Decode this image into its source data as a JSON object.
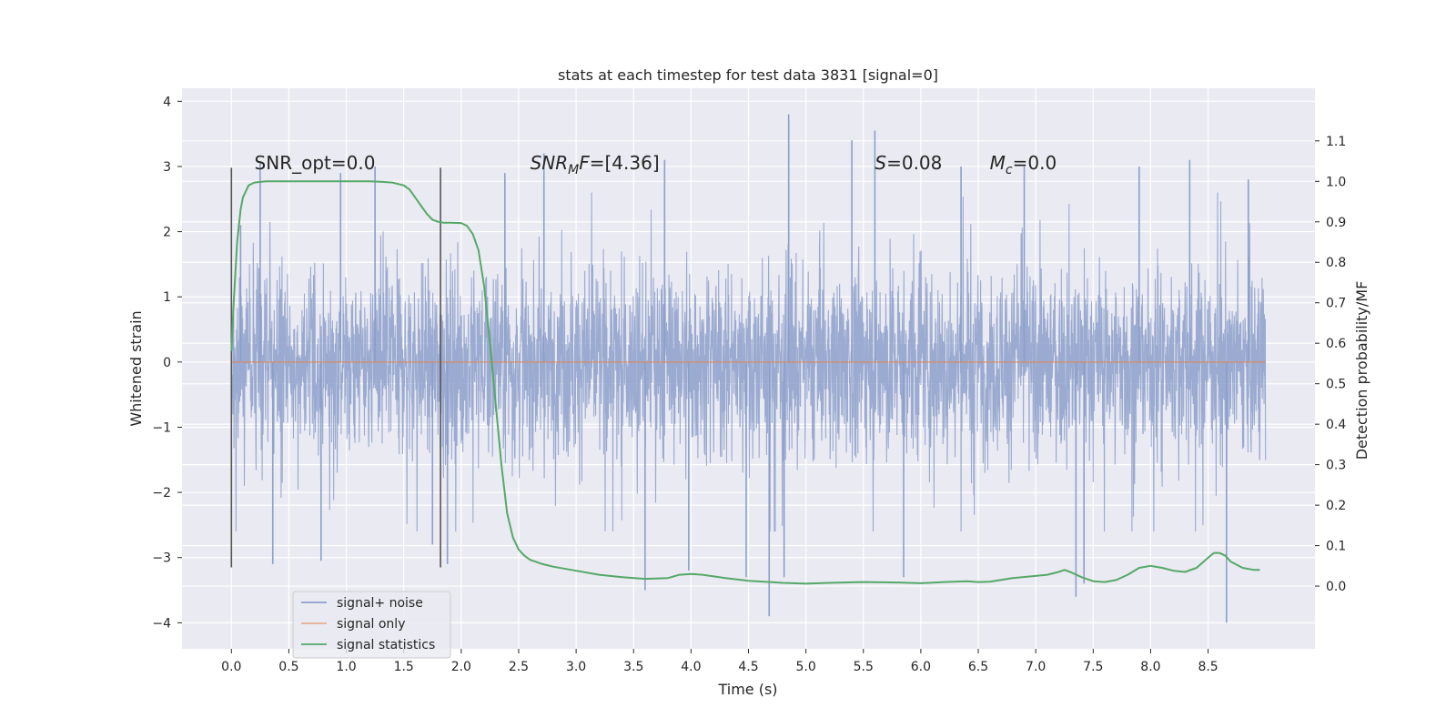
{
  "chart_data": {
    "type": "line",
    "title": "stats at each timestep for test data 3831 [signal=0]",
    "xlabel": "Time (s)",
    "ylabel": "Whitened strain",
    "y2label": "Detection probability/MF",
    "xlim": [
      -0.43,
      9.43
    ],
    "ylim": [
      -4.4,
      4.2
    ],
    "y2lim": [
      -0.155,
      1.23
    ],
    "xticks": [
      0.0,
      0.5,
      1.0,
      1.5,
      2.0,
      2.5,
      3.0,
      3.5,
      4.0,
      4.5,
      5.0,
      5.5,
      6.0,
      6.5,
      7.0,
      7.5,
      8.0,
      8.5
    ],
    "xtick_labels": [
      "0.0",
      "0.5",
      "1.0",
      "1.5",
      "2.0",
      "2.5",
      "3.0",
      "3.5",
      "4.0",
      "4.5",
      "5.0",
      "5.5",
      "6.0",
      "6.5",
      "7.0",
      "7.5",
      "8.0",
      "8.5"
    ],
    "yticks": [
      -4,
      -3,
      -2,
      -1,
      0,
      1,
      2,
      3,
      4
    ],
    "ytick_labels": [
      "−4",
      "−3",
      "−2",
      "−1",
      "0",
      "1",
      "2",
      "3",
      "4"
    ],
    "y2ticks": [
      0.0,
      0.1,
      0.2,
      0.3,
      0.4,
      0.5,
      0.6,
      0.7,
      0.8,
      0.9,
      1.0,
      1.1
    ],
    "y2tick_labels": [
      "0.0",
      "0.1",
      "0.2",
      "0.3",
      "0.4",
      "0.5",
      "0.6",
      "0.7",
      "0.8",
      "0.9",
      "1.0",
      "1.1"
    ],
    "grid": true,
    "legend_position": "lower-left",
    "annotations": [
      {
        "text": "SNR_opt=0.0",
        "x": 0.2,
        "y": 3.0
      },
      {
        "text": "SNR_MF=[4.36]",
        "x": 2.6,
        "y": 3.0,
        "main": "SNR",
        "sub": "M",
        "rest": "F=[4.36]"
      },
      {
        "text": "S=0.08",
        "x": 5.6,
        "y": 3.0,
        "main": "S",
        "rest": "=0.08"
      },
      {
        "text": "M_c=0.0",
        "x": 6.6,
        "y": 3.0,
        "main": "M",
        "sub": "c",
        "rest": "=0.0"
      }
    ],
    "vlines": [
      0.0,
      1.82
    ],
    "vline_range": [
      -3.15,
      2.98
    ],
    "series": [
      {
        "name": "signal+ noise",
        "color": "#8c9fca",
        "x_range": [
          0.0,
          9.0
        ],
        "core_amplitude": 1.15,
        "envelope": [
          -2.6,
          2.6
        ],
        "spikes": [
          {
            "x": 0.08,
            "y": 2.1
          },
          {
            "x": 0.25,
            "y": 3.05
          },
          {
            "x": 0.36,
            "y": -3.1
          },
          {
            "x": 0.78,
            "y": -3.05
          },
          {
            "x": 0.95,
            "y": 2.9
          },
          {
            "x": 1.25,
            "y": 3.0
          },
          {
            "x": 1.75,
            "y": -2.8
          },
          {
            "x": 1.88,
            "y": -3.1
          },
          {
            "x": 2.38,
            "y": 2.9
          },
          {
            "x": 2.72,
            "y": 3.2
          },
          {
            "x": 3.6,
            "y": -3.5
          },
          {
            "x": 3.77,
            "y": 3.1
          },
          {
            "x": 3.98,
            "y": -3.2
          },
          {
            "x": 4.48,
            "y": -3.3
          },
          {
            "x": 4.68,
            "y": -3.9
          },
          {
            "x": 4.85,
            "y": 3.8
          },
          {
            "x": 4.81,
            "y": -3.3
          },
          {
            "x": 5.4,
            "y": 3.4
          },
          {
            "x": 5.6,
            "y": 3.55
          },
          {
            "x": 5.85,
            "y": -3.3
          },
          {
            "x": 6.35,
            "y": 3.0
          },
          {
            "x": 6.9,
            "y": 3.0
          },
          {
            "x": 7.35,
            "y": -3.6
          },
          {
            "x": 7.42,
            "y": -3.4
          },
          {
            "x": 7.9,
            "y": 3.0
          },
          {
            "x": 8.34,
            "y": 3.1
          },
          {
            "x": 8.66,
            "y": -4.0
          },
          {
            "x": 8.85,
            "y": 2.8
          }
        ]
      },
      {
        "name": "signal only",
        "color": "#dd8452",
        "x": [
          0.0,
          9.0
        ],
        "y": [
          0.0,
          0.0
        ]
      },
      {
        "name": "signal statistics",
        "color": "#55a868",
        "axis": "right",
        "x": [
          0.0,
          0.02,
          0.05,
          0.08,
          0.1,
          0.15,
          0.2,
          0.3,
          0.5,
          0.8,
          1.0,
          1.2,
          1.3,
          1.4,
          1.5,
          1.55,
          1.6,
          1.65,
          1.7,
          1.75,
          1.8,
          1.85,
          1.9,
          2.0,
          2.05,
          2.1,
          2.15,
          2.2,
          2.25,
          2.3,
          2.35,
          2.4,
          2.45,
          2.5,
          2.55,
          2.6,
          2.7,
          2.8,
          3.0,
          3.2,
          3.4,
          3.6,
          3.8,
          3.9,
          4.0,
          4.1,
          4.3,
          4.5,
          4.8,
          5.0,
          5.2,
          5.5,
          5.8,
          6.0,
          6.2,
          6.4,
          6.5,
          6.6,
          6.8,
          7.0,
          7.1,
          7.2,
          7.25,
          7.3,
          7.4,
          7.5,
          7.6,
          7.7,
          7.8,
          7.9,
          8.0,
          8.1,
          8.2,
          8.3,
          8.4,
          8.5,
          8.55,
          8.6,
          8.65,
          8.7,
          8.8,
          8.9,
          8.95
        ],
        "y": [
          0.58,
          0.7,
          0.85,
          0.93,
          0.96,
          0.99,
          0.997,
          1.0,
          1.0,
          1.0,
          1.0,
          1.0,
          0.999,
          0.997,
          0.99,
          0.98,
          0.96,
          0.94,
          0.92,
          0.905,
          0.9,
          0.898,
          0.898,
          0.897,
          0.89,
          0.87,
          0.83,
          0.74,
          0.6,
          0.45,
          0.3,
          0.18,
          0.12,
          0.09,
          0.075,
          0.065,
          0.055,
          0.048,
          0.038,
          0.028,
          0.022,
          0.018,
          0.02,
          0.028,
          0.03,
          0.028,
          0.02,
          0.013,
          0.008,
          0.006,
          0.008,
          0.01,
          0.009,
          0.007,
          0.01,
          0.012,
          0.01,
          0.011,
          0.02,
          0.025,
          0.028,
          0.035,
          0.04,
          0.035,
          0.022,
          0.012,
          0.01,
          0.015,
          0.028,
          0.045,
          0.05,
          0.045,
          0.038,
          0.035,
          0.045,
          0.07,
          0.082,
          0.082,
          0.075,
          0.06,
          0.045,
          0.04,
          0.04
        ]
      }
    ]
  }
}
